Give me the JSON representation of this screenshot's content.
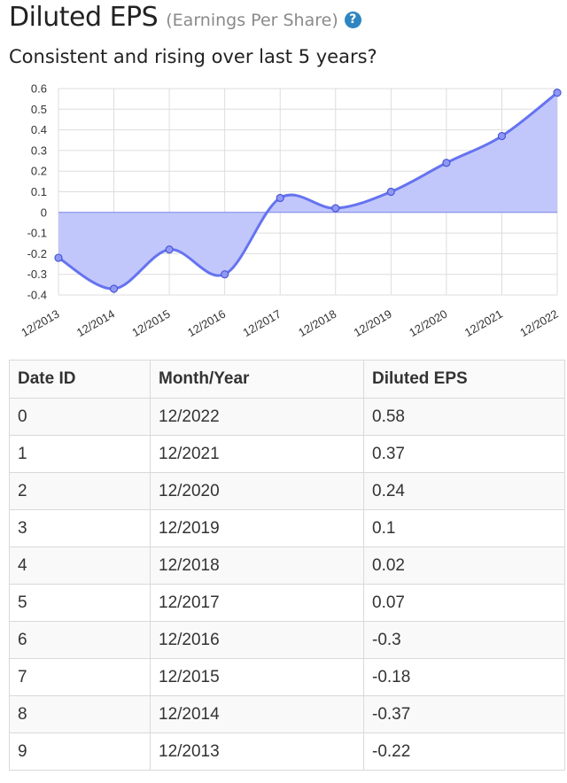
{
  "header": {
    "title": "Diluted EPS",
    "subtitle": "(Earnings Per Share)",
    "help_icon": "?"
  },
  "question": "Consistent and rising over last 5 years?",
  "chart_data": {
    "type": "area",
    "categories": [
      "12/2013",
      "12/2014",
      "12/2015",
      "12/2016",
      "12/2017",
      "12/2018",
      "12/2019",
      "12/2020",
      "12/2021",
      "12/2022"
    ],
    "values": [
      -0.22,
      -0.37,
      -0.18,
      -0.3,
      0.07,
      0.02,
      0.1,
      0.24,
      0.37,
      0.58
    ],
    "yticks": [
      0.6,
      0.5,
      0.4,
      0.3,
      0.2,
      0.1,
      0,
      -0.1,
      -0.2,
      -0.3,
      -0.4
    ],
    "ylim": [
      -0.4,
      0.6
    ],
    "grid": true,
    "colors": {
      "line": "#6573f0",
      "fill": "#bfc4fb",
      "point": "#8f99f5",
      "grid": "#dddddd"
    }
  },
  "table": {
    "headers": [
      "Date ID",
      "Month/Year",
      "Diluted EPS"
    ],
    "rows": [
      [
        "0",
        "12/2022",
        "0.58"
      ],
      [
        "1",
        "12/2021",
        "0.37"
      ],
      [
        "2",
        "12/2020",
        "0.24"
      ],
      [
        "3",
        "12/2019",
        "0.1"
      ],
      [
        "4",
        "12/2018",
        "0.02"
      ],
      [
        "5",
        "12/2017",
        "0.07"
      ],
      [
        "6",
        "12/2016",
        "-0.3"
      ],
      [
        "7",
        "12/2015",
        "-0.18"
      ],
      [
        "8",
        "12/2014",
        "-0.37"
      ],
      [
        "9",
        "12/2013",
        "-0.22"
      ]
    ]
  }
}
